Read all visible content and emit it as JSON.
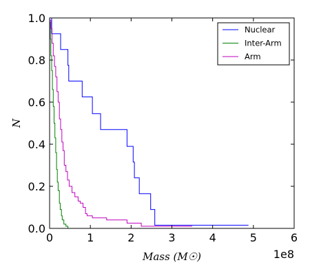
{
  "chart_data": {
    "type": "line",
    "step": true,
    "xlabel": "Mass (M☉)",
    "ylabel": "N",
    "x_offset_label": "1e8",
    "xlim": [
      0,
      6
    ],
    "ylim": [
      0,
      1.0
    ],
    "xticks": [
      "0",
      "1",
      "2",
      "3",
      "4",
      "5",
      "6"
    ],
    "yticks": [
      "0.0",
      "0.2",
      "0.4",
      "0.6",
      "0.8",
      "1.0"
    ],
    "legend_position": "top-right",
    "grid": false,
    "series": [
      {
        "name": "Nuclear",
        "color": "#0000ff",
        "x": [
          0.0,
          0.05,
          0.05,
          0.27,
          0.27,
          0.45,
          0.45,
          0.47,
          0.47,
          0.8,
          0.8,
          1.05,
          1.05,
          1.25,
          1.25,
          1.9,
          1.9,
          2.05,
          2.05,
          2.08,
          2.08,
          2.2,
          2.2,
          2.48,
          2.48,
          2.58,
          2.58,
          4.88
        ],
        "y": [
          1.0,
          1.0,
          0.925,
          0.925,
          0.85,
          0.85,
          0.775,
          0.775,
          0.7,
          0.7,
          0.625,
          0.625,
          0.545,
          0.545,
          0.47,
          0.47,
          0.39,
          0.39,
          0.315,
          0.315,
          0.24,
          0.24,
          0.165,
          0.165,
          0.09,
          0.09,
          0.015,
          0.015
        ]
      },
      {
        "name": "Inter-Arm",
        "color": "#008000",
        "x": [
          0.0,
          0.02,
          0.02,
          0.03,
          0.03,
          0.05,
          0.05,
          0.07,
          0.07,
          0.09,
          0.09,
          0.11,
          0.11,
          0.13,
          0.13,
          0.15,
          0.15,
          0.17,
          0.17,
          0.19,
          0.19,
          0.21,
          0.21,
          0.24,
          0.24,
          0.26,
          0.26,
          0.29,
          0.29,
          0.31,
          0.31,
          0.35,
          0.35,
          0.4,
          0.4,
          0.45,
          0.45
        ],
        "y": [
          0.98,
          0.98,
          0.9,
          0.9,
          0.82,
          0.82,
          0.75,
          0.75,
          0.66,
          0.66,
          0.58,
          0.58,
          0.5,
          0.5,
          0.43,
          0.43,
          0.36,
          0.36,
          0.28,
          0.28,
          0.22,
          0.22,
          0.18,
          0.18,
          0.12,
          0.12,
          0.09,
          0.09,
          0.06,
          0.06,
          0.04,
          0.04,
          0.02,
          0.02,
          0.01,
          0.01,
          0.0
        ]
      },
      {
        "name": "Arm",
        "color": "#bf00bf",
        "x": [
          0.0,
          0.03,
          0.03,
          0.06,
          0.06,
          0.09,
          0.09,
          0.12,
          0.12,
          0.15,
          0.15,
          0.18,
          0.18,
          0.21,
          0.21,
          0.24,
          0.24,
          0.27,
          0.27,
          0.3,
          0.3,
          0.33,
          0.33,
          0.36,
          0.36,
          0.4,
          0.4,
          0.44,
          0.44,
          0.48,
          0.48,
          0.55,
          0.55,
          0.62,
          0.62,
          0.7,
          0.7,
          0.75,
          0.75,
          0.82,
          0.82,
          0.88,
          0.88,
          0.92,
          0.92,
          1.05,
          1.05,
          1.4,
          1.4,
          1.9,
          1.9,
          2.25,
          2.25,
          3.5
        ],
        "y": [
          0.99,
          0.99,
          0.95,
          0.95,
          0.88,
          0.88,
          0.82,
          0.82,
          0.77,
          0.77,
          0.72,
          0.72,
          0.65,
          0.65,
          0.6,
          0.6,
          0.52,
          0.52,
          0.47,
          0.47,
          0.41,
          0.41,
          0.37,
          0.37,
          0.3,
          0.3,
          0.27,
          0.27,
          0.23,
          0.23,
          0.2,
          0.2,
          0.17,
          0.17,
          0.15,
          0.15,
          0.13,
          0.13,
          0.12,
          0.12,
          0.1,
          0.1,
          0.07,
          0.07,
          0.06,
          0.06,
          0.05,
          0.05,
          0.04,
          0.04,
          0.025,
          0.025,
          0.01,
          0.01
        ]
      }
    ]
  }
}
